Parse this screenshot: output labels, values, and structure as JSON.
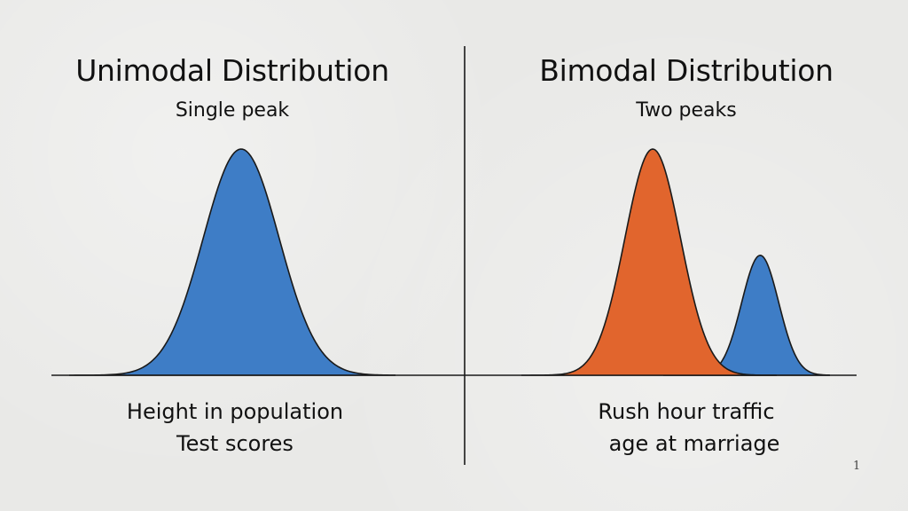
{
  "slide": {
    "page_number": "1",
    "colors": {
      "background": "#e9e9e7",
      "unimodal_fill": "#3e7dc6",
      "bimodal_primary_fill": "#e1652d",
      "bimodal_secondary_fill": "#3e7dc6",
      "outline": "#1a1a1a"
    }
  },
  "left_panel": {
    "title": "Unimodal Distribution",
    "subtitle": "Single peak",
    "examples": [
      "Height in population",
      "Test scores"
    ]
  },
  "right_panel": {
    "title": "Bimodal Distribution",
    "subtitle": "Two peaks",
    "examples": [
      "Rush hour traffic",
      "age at marriage"
    ]
  },
  "chart_data": [
    {
      "type": "area",
      "panel": "left",
      "title": "Unimodal Distribution",
      "series": [
        {
          "peak_position": 0.5,
          "relative_height": 1.0,
          "spread": 0.1,
          "color": "#3e7dc6"
        }
      ]
    },
    {
      "type": "area",
      "panel": "right",
      "title": "Bimodal Distribution",
      "series": [
        {
          "peak_position": 0.45,
          "relative_height": 1.0,
          "spread": 0.075,
          "color": "#e1652d"
        },
        {
          "peak_position": 0.74,
          "relative_height": 0.53,
          "spread": 0.05,
          "color": "#3e7dc6"
        }
      ]
    }
  ]
}
